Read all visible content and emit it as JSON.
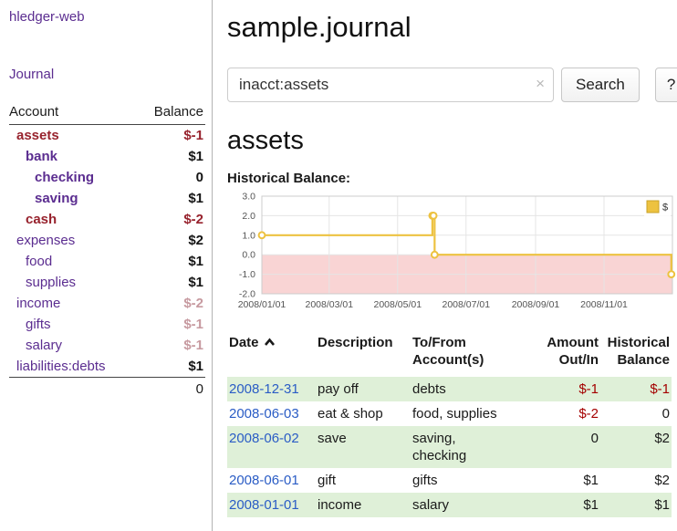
{
  "app": {
    "title": "hledger-web",
    "journal_link": "Journal"
  },
  "colors": {
    "link_purple": "#5b2d90",
    "negative_strong": "#97222d",
    "negative_muted": "#c79aa0",
    "table_negative": "#a40000",
    "date_link_blue": "#2a5cc5",
    "stripe_green": "#dff0d8",
    "chart_line": "#edc240",
    "chart_negative_region": "#f9d4d4"
  },
  "sidebar": {
    "headers": {
      "account": "Account",
      "balance": "Balance"
    },
    "accounts": [
      {
        "name": "assets",
        "balance": "$-1",
        "indent": 0,
        "bold": true,
        "name_style": "maroon",
        "balance_style": "neg-strong"
      },
      {
        "name": "bank",
        "balance": "$1",
        "indent": 1,
        "bold": true,
        "name_style": "purple",
        "balance_style": "blk"
      },
      {
        "name": "checking",
        "balance": "0",
        "indent": 2,
        "bold": true,
        "name_style": "purple",
        "balance_style": "blk"
      },
      {
        "name": "saving",
        "balance": "$1",
        "indent": 2,
        "bold": true,
        "name_style": "purple",
        "balance_style": "blk"
      },
      {
        "name": "cash",
        "balance": "$-2",
        "indent": 1,
        "bold": true,
        "name_style": "maroon",
        "balance_style": "neg-strong"
      },
      {
        "name": "expenses",
        "balance": "$2",
        "indent": 0,
        "bold": false,
        "name_style": "purple",
        "balance_style": "blk"
      },
      {
        "name": "food",
        "balance": "$1",
        "indent": 1,
        "bold": false,
        "name_style": "purple",
        "balance_style": "blk"
      },
      {
        "name": "supplies",
        "balance": "$1",
        "indent": 1,
        "bold": false,
        "name_style": "purple",
        "balance_style": "blk"
      },
      {
        "name": "income",
        "balance": "$-2",
        "indent": 0,
        "bold": false,
        "name_style": "purple",
        "balance_style": "neg-muted"
      },
      {
        "name": "gifts",
        "balance": "$-1",
        "indent": 1,
        "bold": false,
        "name_style": "purple",
        "balance_style": "neg-muted"
      },
      {
        "name": "salary",
        "balance": "$-1",
        "indent": 1,
        "bold": false,
        "name_style": "purple",
        "balance_style": "neg-muted"
      },
      {
        "name": "liabilities:debts",
        "balance": "$1",
        "indent": 0,
        "bold": false,
        "name_style": "purple",
        "balance_style": "blk"
      }
    ],
    "total": "0"
  },
  "main": {
    "title": "sample.journal",
    "search": {
      "value": "inacct:assets",
      "clear_icon": "×",
      "button_label": "Search",
      "help_label": "?"
    },
    "account_heading": "assets",
    "chart_label": "Historical Balance:"
  },
  "chart_data": {
    "type": "line",
    "title": "Historical Balance",
    "step": true,
    "legend_label": "$",
    "legend_position": "top-right",
    "grid": true,
    "ylim": [
      -2,
      3
    ],
    "x_range_days": 366,
    "x_start": "2008/01/01",
    "y_ticks": [
      {
        "v": 3,
        "label": "3.0"
      },
      {
        "v": 2,
        "label": "2.0"
      },
      {
        "v": 1,
        "label": "1.0"
      },
      {
        "v": 0,
        "label": "0.0"
      },
      {
        "v": -1,
        "label": "-1.0"
      },
      {
        "v": -2,
        "label": "-2.0"
      }
    ],
    "x_ticks": [
      {
        "day": 0,
        "label": "2008/01/01"
      },
      {
        "day": 60,
        "label": "2008/03/01"
      },
      {
        "day": 121,
        "label": "2008/05/01"
      },
      {
        "day": 182,
        "label": "2008/07/01"
      },
      {
        "day": 244,
        "label": "2008/09/01"
      },
      {
        "day": 305,
        "label": "2008/11/01"
      }
    ],
    "points": [
      {
        "date": "2008-01-01",
        "x_day": 0,
        "y": 1
      },
      {
        "date": "2008-06-01",
        "x_day": 152,
        "y": 2
      },
      {
        "date": "2008-06-02",
        "x_day": 153,
        "y": 2
      },
      {
        "date": "2008-06-03",
        "x_day": 154,
        "y": 0
      },
      {
        "date": "2008-12-31",
        "x_day": 365,
        "y": -1
      }
    ],
    "negative_region": true
  },
  "register": {
    "headers": {
      "date": "Date",
      "description": "Description",
      "accounts": "To/From\nAccount(s)",
      "amount": "Amount\nOut/In",
      "balance": "Historical\nBalance"
    },
    "rows": [
      {
        "date": "2008-12-31",
        "description": "pay off",
        "accounts": "debts",
        "amount": "$-1",
        "amount_negative": true,
        "balance": "$-1",
        "balance_negative": true
      },
      {
        "date": "2008-06-03",
        "description": "eat & shop",
        "accounts": "food, supplies",
        "amount": "$-2",
        "amount_negative": true,
        "balance": "0",
        "balance_negative": false
      },
      {
        "date": "2008-06-02",
        "description": "save",
        "accounts": "saving,\nchecking",
        "amount": "0",
        "amount_negative": false,
        "balance": "$2",
        "balance_negative": false
      },
      {
        "date": "2008-06-01",
        "description": "gift",
        "accounts": "gifts",
        "amount": "$1",
        "amount_negative": false,
        "balance": "$2",
        "balance_negative": false
      },
      {
        "date": "2008-01-01",
        "description": "income",
        "accounts": "salary",
        "amount": "$1",
        "amount_negative": false,
        "balance": "$1",
        "balance_negative": false
      }
    ]
  }
}
